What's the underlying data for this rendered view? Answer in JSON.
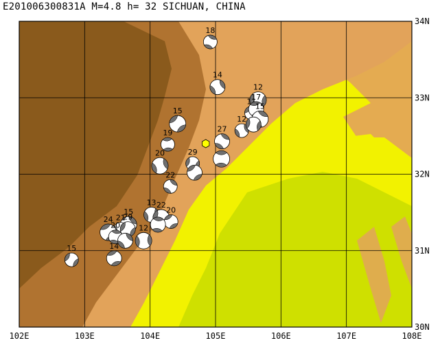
{
  "header": {
    "title": "E201006300831A M=4.8 h= 32 SICHUAN, CHINA"
  },
  "map": {
    "lon_range": [
      102,
      108
    ],
    "lat_range": [
      30,
      34
    ],
    "lon_labels": [
      "102E",
      "103E",
      "104E",
      "105E",
      "106E",
      "107E",
      "108E"
    ],
    "lat_labels": [
      "30N",
      "31N",
      "32N",
      "33N",
      "34N"
    ],
    "colors": {
      "mountain_dark": "#8a5a1c",
      "mountain_mid": "#b87a2e",
      "foothill": "#e2a35a",
      "lowland": "#f2f200",
      "basin": "#cde000",
      "grid": "#000000",
      "beachball_dark": "#707070",
      "epicenter_marker": "#ffff00"
    },
    "epicenter": {
      "lon": 104.85,
      "lat": 32.4
    },
    "mechanisms": [
      {
        "lon": 104.92,
        "lat": 33.73,
        "depth": "18"
      },
      {
        "lon": 105.03,
        "lat": 33.14,
        "depth": "14"
      },
      {
        "lon": 105.65,
        "lat": 32.97,
        "depth": "12"
      },
      {
        "lon": 105.55,
        "lat": 32.8,
        "depth": "11"
      },
      {
        "lon": 105.62,
        "lat": 32.85,
        "depth": "17"
      },
      {
        "lon": 105.68,
        "lat": 32.72,
        "depth": "15"
      },
      {
        "lon": 105.4,
        "lat": 32.57,
        "depth": "12"
      },
      {
        "lon": 105.58,
        "lat": 32.65,
        "depth": ""
      },
      {
        "lon": 104.42,
        "lat": 32.66,
        "depth": "15"
      },
      {
        "lon": 104.27,
        "lat": 32.39,
        "depth": "19"
      },
      {
        "lon": 105.1,
        "lat": 32.43,
        "depth": "27"
      },
      {
        "lon": 104.15,
        "lat": 32.11,
        "depth": "20"
      },
      {
        "lon": 104.65,
        "lat": 32.14,
        "depth": "29"
      },
      {
        "lon": 104.68,
        "lat": 32.02,
        "depth": ""
      },
      {
        "lon": 105.09,
        "lat": 32.2,
        "depth": ""
      },
      {
        "lon": 104.31,
        "lat": 31.84,
        "depth": "22"
      },
      {
        "lon": 104.02,
        "lat": 31.47,
        "depth": "13"
      },
      {
        "lon": 104.17,
        "lat": 31.43,
        "depth": "22"
      },
      {
        "lon": 104.32,
        "lat": 31.38,
        "depth": "20"
      },
      {
        "lon": 104.12,
        "lat": 31.34,
        "depth": ""
      },
      {
        "lon": 103.67,
        "lat": 31.34,
        "depth": "15"
      },
      {
        "lon": 103.55,
        "lat": 31.28,
        "depth": "21"
      },
      {
        "lon": 103.66,
        "lat": 31.28,
        "depth": "29"
      },
      {
        "lon": 103.36,
        "lat": 31.24,
        "depth": "24"
      },
      {
        "lon": 103.47,
        "lat": 31.18,
        "depth": "20"
      },
      {
        "lon": 103.62,
        "lat": 31.13,
        "depth": ""
      },
      {
        "lon": 103.9,
        "lat": 31.13,
        "depth": "12"
      },
      {
        "lon": 102.8,
        "lat": 30.88,
        "depth": "15"
      },
      {
        "lon": 103.45,
        "lat": 30.9,
        "depth": "14"
      }
    ]
  }
}
